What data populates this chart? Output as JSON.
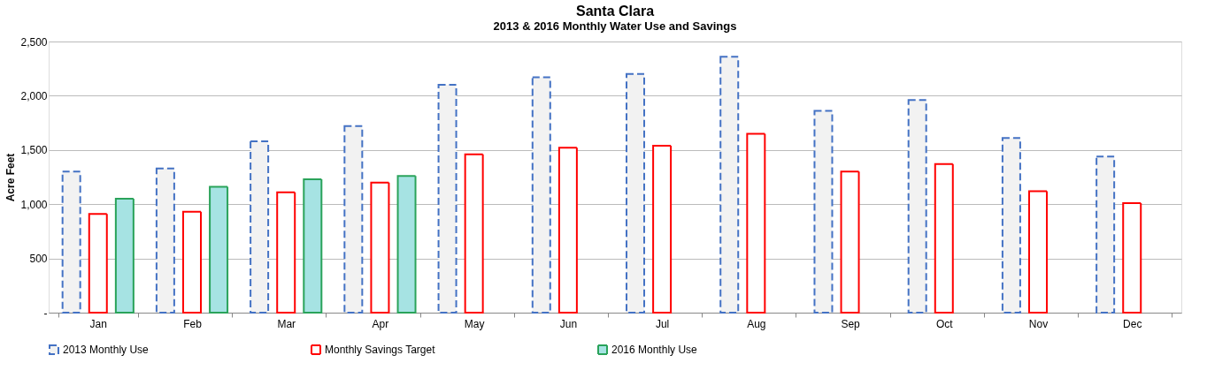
{
  "chart_data": {
    "type": "bar",
    "title": "Santa Clara",
    "subtitle": "2013 & 2016  Monthly Water Use and Savings",
    "ylabel": "Acre Feet",
    "categories": [
      "Jan",
      "Feb",
      "Mar",
      "Apr",
      "May",
      "Jun",
      "Jul",
      "Aug",
      "Sep",
      "Oct",
      "Nov",
      "Dec"
    ],
    "series": [
      {
        "name": "2013 Monthly Use",
        "color": "#f2f2f2",
        "line_style": "dashed",
        "values": [
          1300,
          1330,
          1580,
          1720,
          2100,
          2170,
          2200,
          2360,
          1860,
          1960,
          1610,
          1440
        ]
      },
      {
        "name": "Monthly Savings Target",
        "color": "#ffffff",
        "line_style": "solid",
        "values": [
          910,
          930,
          1110,
          1200,
          1460,
          1520,
          1540,
          1650,
          1300,
          1370,
          1120,
          1010
        ]
      },
      {
        "name": "2016 Monthly Use",
        "color": "#a6e3e3",
        "line_style": "solid",
        "values": [
          1050,
          1160,
          1230,
          1260,
          null,
          null,
          null,
          null,
          null,
          null,
          null,
          null
        ]
      }
    ],
    "ylim": [
      0,
      2500
    ],
    "yticks": [
      {
        "value": 0,
        "label": "-"
      },
      500,
      {
        "value": 1000,
        "label": "1,000"
      },
      {
        "value": 1500,
        "label": "1,500"
      },
      {
        "value": 2000,
        "label": "2,000"
      },
      {
        "value": 2500,
        "label": "2,500"
      }
    ],
    "grid": "y",
    "legend": "bottom"
  }
}
